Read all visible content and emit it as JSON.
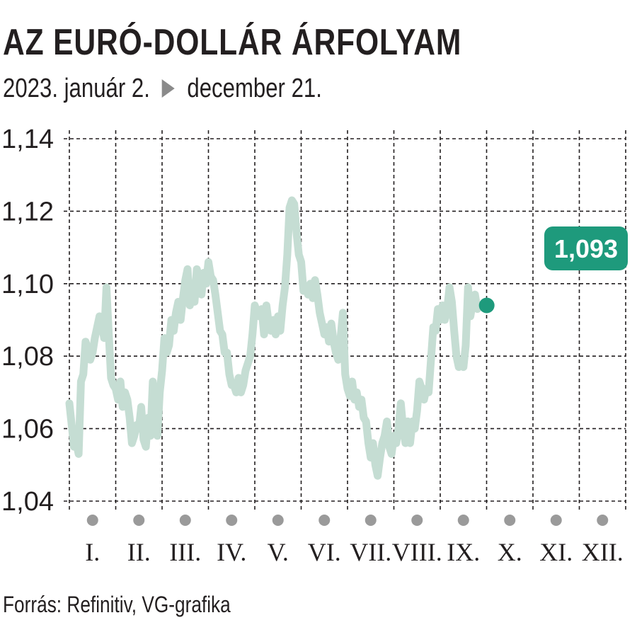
{
  "title": "AZ EURÓ-DOLLÁR ÁRFOLYAM",
  "subtitle": {
    "start": "2023. január 2.",
    "end": "december 21."
  },
  "source": "Forrás: Refinitiv, VG-grafika",
  "colors": {
    "line": "#c5ddd3",
    "accent": "#1e9a7c",
    "grid": "#231f20",
    "month_dot": "#9a9a9a"
  },
  "chart_data": {
    "type": "line",
    "title": "AZ EURÓ-DOLLÁR ÁRFOLYAM",
    "ylim": [
      1.04,
      1.14
    ],
    "yticks": [
      1.04,
      1.06,
      1.08,
      1.1,
      1.12,
      1.14
    ],
    "ytick_labels": [
      "1,04",
      "1,06",
      "1,08",
      "1,10",
      "1,12",
      "1,14"
    ],
    "x_range_months": [
      0,
      12
    ],
    "months": [
      "I.",
      "II.",
      "III.",
      "IV.",
      "V.",
      "VI.",
      "VII.",
      "VIII.",
      "IX.",
      "X.",
      "XI.",
      "XII."
    ],
    "grid": true,
    "last_value_label": "1,093",
    "series": [
      {
        "points": [
          [
            0.0,
            1.067
          ],
          [
            0.05,
            1.061
          ],
          [
            0.1,
            1.055
          ],
          [
            0.15,
            1.056
          ],
          [
            0.2,
            1.053
          ],
          [
            0.25,
            1.073
          ],
          [
            0.3,
            1.075
          ],
          [
            0.35,
            1.084
          ],
          [
            0.4,
            1.082
          ],
          [
            0.45,
            1.079
          ],
          [
            0.5,
            1.081
          ],
          [
            0.55,
            1.085
          ],
          [
            0.6,
            1.088
          ],
          [
            0.65,
            1.091
          ],
          [
            0.7,
            1.089
          ],
          [
            0.75,
            1.085
          ],
          [
            0.8,
            1.099
          ],
          [
            0.85,
            1.086
          ],
          [
            0.9,
            1.074
          ],
          [
            0.95,
            1.072
          ],
          [
            1.0,
            1.071
          ],
          [
            1.05,
            1.068
          ],
          [
            1.1,
            1.073
          ],
          [
            1.15,
            1.066
          ],
          [
            1.2,
            1.07
          ],
          [
            1.25,
            1.068
          ],
          [
            1.3,
            1.063
          ],
          [
            1.35,
            1.056
          ],
          [
            1.4,
            1.058
          ],
          [
            1.45,
            1.061
          ],
          [
            1.5,
            1.06
          ],
          [
            1.55,
            1.066
          ],
          [
            1.6,
            1.057
          ],
          [
            1.65,
            1.055
          ],
          [
            1.7,
            1.063
          ],
          [
            1.75,
            1.058
          ],
          [
            1.8,
            1.073
          ],
          [
            1.85,
            1.062
          ],
          [
            1.9,
            1.058
          ],
          [
            1.95,
            1.07
          ],
          [
            2.0,
            1.076
          ],
          [
            2.05,
            1.085
          ],
          [
            2.1,
            1.081
          ],
          [
            2.15,
            1.083
          ],
          [
            2.2,
            1.09
          ],
          [
            2.25,
            1.087
          ],
          [
            2.3,
            1.092
          ],
          [
            2.35,
            1.095
          ],
          [
            2.4,
            1.09
          ],
          [
            2.45,
            1.096
          ],
          [
            2.5,
            1.101
          ],
          [
            2.55,
            1.104
          ],
          [
            2.6,
            1.094
          ],
          [
            2.65,
            1.097
          ],
          [
            2.7,
            1.095
          ],
          [
            2.75,
            1.104
          ],
          [
            2.8,
            1.102
          ],
          [
            2.85,
            1.097
          ],
          [
            2.9,
            1.103
          ],
          [
            2.95,
            1.1
          ],
          [
            3.0,
            1.106
          ],
          [
            3.05,
            1.102
          ],
          [
            3.1,
            1.101
          ],
          [
            3.15,
            1.097
          ],
          [
            3.2,
            1.092
          ],
          [
            3.25,
            1.087
          ],
          [
            3.3,
            1.086
          ],
          [
            3.35,
            1.081
          ],
          [
            3.4,
            1.081
          ],
          [
            3.45,
            1.075
          ],
          [
            3.5,
            1.072
          ],
          [
            3.55,
            1.072
          ],
          [
            3.6,
            1.07
          ],
          [
            3.65,
            1.074
          ],
          [
            3.7,
            1.07
          ],
          [
            3.75,
            1.072
          ],
          [
            3.8,
            1.076
          ],
          [
            3.85,
            1.078
          ],
          [
            3.9,
            1.08
          ],
          [
            3.95,
            1.086
          ],
          [
            4.0,
            1.094
          ],
          [
            4.05,
            1.092
          ],
          [
            4.1,
            1.091
          ],
          [
            4.15,
            1.093
          ],
          [
            4.2,
            1.086
          ],
          [
            4.25,
            1.094
          ],
          [
            4.3,
            1.089
          ],
          [
            4.35,
            1.087
          ],
          [
            4.4,
            1.09
          ],
          [
            4.45,
            1.086
          ],
          [
            4.5,
            1.091
          ],
          [
            4.55,
            1.087
          ],
          [
            4.6,
            1.094
          ],
          [
            4.65,
            1.099
          ],
          [
            4.7,
            1.108
          ],
          [
            4.75,
            1.121
          ],
          [
            4.8,
            1.123
          ],
          [
            4.85,
            1.122
          ],
          [
            4.9,
            1.114
          ],
          [
            4.95,
            1.108
          ],
          [
            5.0,
            1.106
          ],
          [
            5.05,
            1.098
          ],
          [
            5.1,
            1.099
          ],
          [
            5.15,
            1.097
          ],
          [
            5.2,
            1.1
          ],
          [
            5.25,
            1.096
          ],
          [
            5.3,
            1.101
          ],
          [
            5.35,
            1.097
          ],
          [
            5.4,
            1.092
          ],
          [
            5.45,
            1.089
          ],
          [
            5.5,
            1.086
          ],
          [
            5.55,
            1.088
          ],
          [
            5.6,
            1.084
          ],
          [
            5.65,
            1.089
          ],
          [
            5.7,
            1.084
          ],
          [
            5.75,
            1.081
          ],
          [
            5.8,
            1.079
          ],
          [
            5.85,
            1.085
          ],
          [
            5.9,
            1.092
          ],
          [
            5.95,
            1.075
          ],
          [
            6.0,
            1.071
          ],
          [
            6.05,
            1.069
          ],
          [
            6.1,
            1.073
          ],
          [
            6.15,
            1.068
          ],
          [
            6.2,
            1.07
          ],
          [
            6.25,
            1.066
          ],
          [
            6.3,
            1.068
          ],
          [
            6.35,
            1.063
          ],
          [
            6.4,
            1.062
          ],
          [
            6.45,
            1.056
          ],
          [
            6.5,
            1.052
          ],
          [
            6.55,
            1.056
          ],
          [
            6.6,
            1.05
          ],
          [
            6.65,
            1.047
          ],
          [
            6.7,
            1.052
          ],
          [
            6.75,
            1.056
          ],
          [
            6.8,
            1.058
          ],
          [
            6.85,
            1.062
          ],
          [
            6.9,
            1.055
          ],
          [
            6.95,
            1.053
          ],
          [
            7.0,
            1.058
          ],
          [
            7.05,
            1.056
          ],
          [
            7.1,
            1.06
          ],
          [
            7.15,
            1.067
          ],
          [
            7.2,
            1.06
          ],
          [
            7.25,
            1.056
          ],
          [
            7.3,
            1.062
          ],
          [
            7.35,
            1.056
          ],
          [
            7.4,
            1.062
          ],
          [
            7.45,
            1.06
          ],
          [
            7.5,
            1.065
          ],
          [
            7.55,
            1.073
          ],
          [
            7.6,
            1.071
          ],
          [
            7.65,
            1.068
          ],
          [
            7.7,
            1.071
          ],
          [
            7.75,
            1.07
          ],
          [
            7.8,
            1.079
          ],
          [
            7.85,
            1.088
          ],
          [
            7.9,
            1.087
          ],
          [
            7.95,
            1.093
          ],
          [
            8.0,
            1.09
          ],
          [
            8.05,
            1.094
          ],
          [
            8.1,
            1.09
          ],
          [
            8.15,
            1.093
          ],
          [
            8.2,
            1.099
          ],
          [
            8.25,
            1.095
          ],
          [
            8.3,
            1.087
          ],
          [
            8.35,
            1.08
          ],
          [
            8.4,
            1.077
          ],
          [
            8.45,
            1.078
          ],
          [
            8.5,
            1.077
          ],
          [
            8.55,
            1.083
          ],
          [
            8.6,
            1.099
          ],
          [
            8.65,
            1.091
          ],
          [
            8.7,
            1.095
          ],
          [
            8.75,
            1.097
          ],
          [
            8.8,
            1.093
          ],
          [
            8.85,
            1.094
          ]
        ]
      }
    ]
  }
}
